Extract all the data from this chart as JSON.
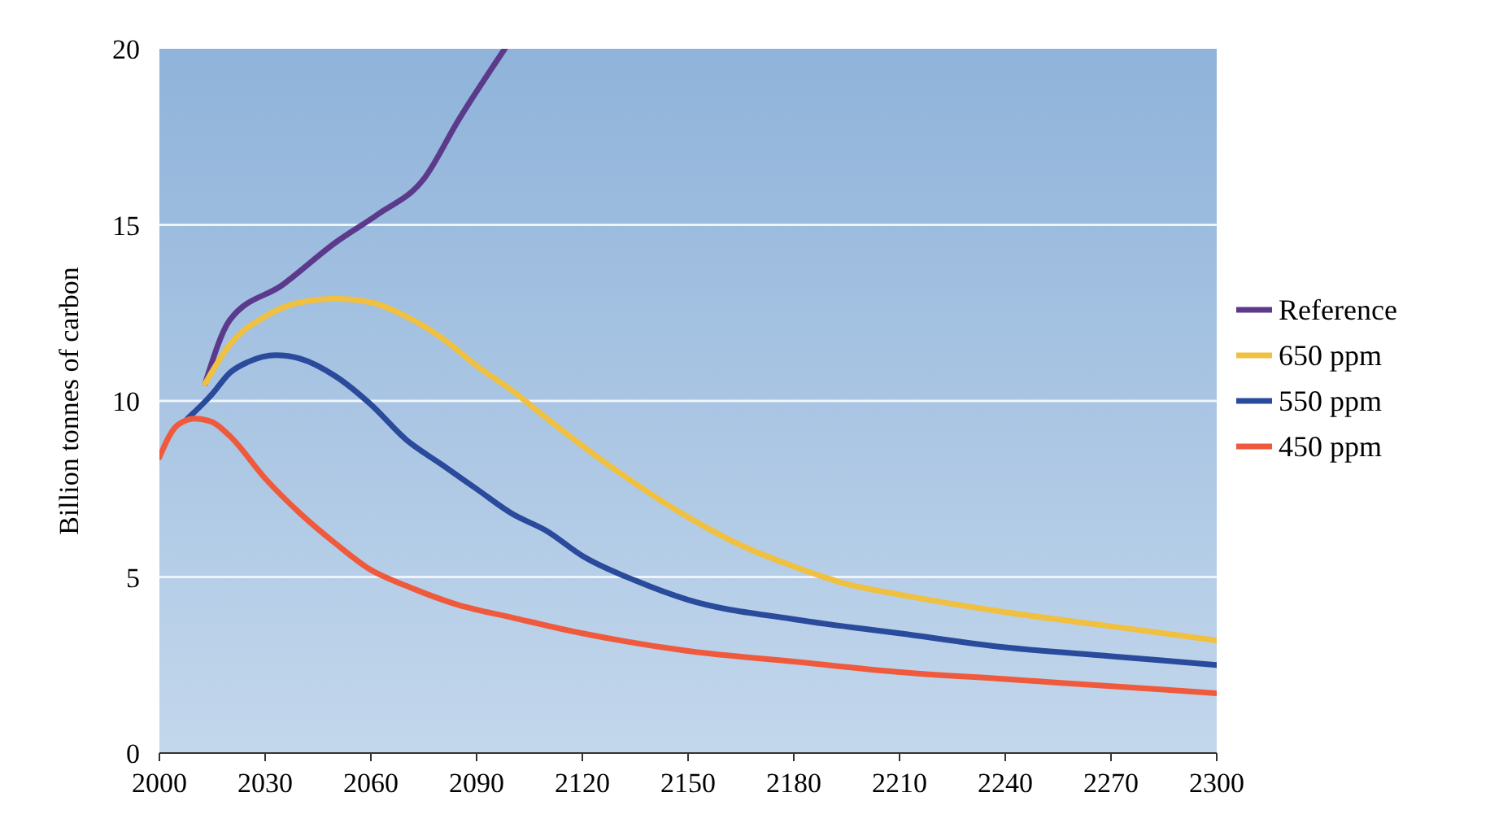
{
  "chart_data": {
    "type": "line",
    "ylabel": "Billion tonnes of carbon",
    "xlim": [
      2000,
      2300
    ],
    "xticks": [
      2000,
      2030,
      2060,
      2090,
      2120,
      2150,
      2180,
      2210,
      2240,
      2270,
      2300
    ],
    "ylim": [
      0,
      20
    ],
    "yticks": [
      0,
      5,
      10,
      15,
      20
    ],
    "grid": "y",
    "legend": "right",
    "series": [
      {
        "name": "Reference",
        "color": "#5b3a8c",
        "x": [
          2013,
          2020,
          2035,
          2050,
          2062,
          2075,
          2085,
          2098
        ],
        "values": [
          10.5,
          12.3,
          13.3,
          14.5,
          15.3,
          16.3,
          18.0,
          20
        ]
      },
      {
        "name": "650 ppm",
        "color": "#f0c040",
        "x": [
          2013,
          2020,
          2030,
          2040,
          2050,
          2060,
          2070,
          2080,
          2090,
          2100,
          2110,
          2130,
          2150,
          2165,
          2180,
          2195,
          2210,
          2240,
          2270,
          2300
        ],
        "values": [
          10.5,
          11.6,
          12.4,
          12.8,
          12.9,
          12.8,
          12.4,
          11.8,
          11.0,
          10.3,
          9.5,
          8.0,
          6.7,
          5.9,
          5.3,
          4.8,
          4.5,
          4.0,
          3.6,
          3.2
        ]
      },
      {
        "name": "550 ppm",
        "color": "#2a4a9c",
        "x": [
          2008,
          2015,
          2020,
          2025,
          2033,
          2040,
          2050,
          2060,
          2070,
          2080,
          2090,
          2100,
          2110,
          2120,
          2135,
          2150,
          2180,
          2210,
          2240,
          2270,
          2300
        ],
        "values": [
          9.5,
          10.2,
          10.8,
          11.1,
          11.3,
          11.2,
          10.7,
          9.9,
          8.9,
          8.2,
          7.5,
          6.8,
          6.3,
          5.6,
          4.9,
          4.35,
          3.8,
          3.4,
          3.0,
          2.75,
          2.5
        ]
      },
      {
        "name": "450 ppm",
        "color": "#f05a3c",
        "x": [
          2000,
          2005,
          2010,
          2015,
          2020,
          2030,
          2040,
          2050,
          2060,
          2070,
          2085,
          2100,
          2120,
          2150,
          2180,
          2210,
          2240,
          2270,
          2300
        ],
        "values": [
          8.4,
          9.3,
          9.5,
          9.4,
          9.0,
          7.8,
          6.8,
          5.95,
          5.2,
          4.75,
          4.2,
          3.85,
          3.4,
          2.9,
          2.6,
          2.3,
          2.1,
          1.9,
          1.7
        ]
      }
    ]
  }
}
